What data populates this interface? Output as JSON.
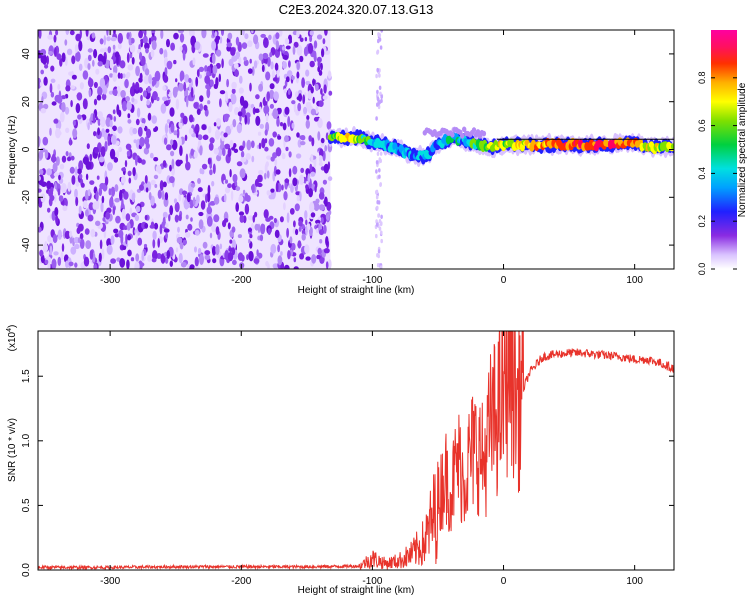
{
  "title": "C2E3.2024.320.07.13.G13",
  "chart_data": [
    {
      "type": "heatmap",
      "xlabel": "Height of straight line (km)",
      "ylabel": "Frequency (Hz)",
      "xlim": [
        -355,
        130
      ],
      "ylim": [
        -50,
        50
      ],
      "xticks": [
        -300,
        -200,
        -100,
        0,
        100
      ],
      "xtick_labels": [
        "-300",
        "-200",
        "-100",
        "0",
        "100"
      ],
      "yticks": [
        -40,
        -20,
        0,
        20,
        40
      ],
      "ytick_labels": [
        "-40",
        "-20",
        "0",
        "20",
        "40"
      ],
      "grid": false,
      "noise_region_x": [
        -355,
        -132
      ],
      "signal_start_x": -132,
      "ridge": {
        "x": [
          -132,
          -120,
          -110,
          -100,
          -90,
          -80,
          -70,
          -60,
          -50,
          -40,
          -30,
          -20,
          -10,
          0,
          20,
          40,
          60,
          80,
          100,
          110,
          130
        ],
        "freq": [
          5,
          5,
          5,
          3,
          2,
          0,
          -2,
          -3,
          2,
          5,
          4,
          2,
          1,
          2,
          2,
          2,
          2,
          2,
          3,
          1,
          1
        ],
        "amplitude": [
          0.45,
          0.7,
          0.5,
          0.4,
          0.3,
          0.3,
          0.25,
          0.3,
          0.25,
          0.35,
          0.3,
          0.45,
          0.55,
          0.6,
          0.7,
          0.8,
          0.85,
          0.9,
          0.8,
          0.6,
          0.6
        ]
      },
      "colorbar": {
        "label": "Normalized spectral amplitude",
        "range": [
          0,
          1
        ],
        "ticks": [
          0.0,
          0.2,
          0.4,
          0.6,
          0.8
        ],
        "tick_labels": [
          "0.0",
          "0.2",
          "0.4",
          "0.6",
          "0.8"
        ],
        "colormap": "rainbow (white-violet-blue-cyan-green-yellow-orange-red-magenta)"
      }
    },
    {
      "type": "line",
      "xlabel": "Height of straight line (km)",
      "ylabel": "SNR (10 * v/v)",
      "yscale_label": "(x10",
      "yscale_exponent": "4",
      "xlim": [
        -355,
        130
      ],
      "ylim": [
        0,
        18500
      ],
      "xticks": [
        -300,
        -200,
        -100,
        0,
        100
      ],
      "xtick_labels": [
        "-300",
        "-200",
        "-100",
        "0",
        "100"
      ],
      "yticks": [
        0,
        5000,
        10000,
        15000
      ],
      "ytick_labels": [
        "0.0",
        "0.5",
        "1.0",
        "1.5"
      ],
      "grid": false,
      "color": "#e8332b",
      "series": [
        {
          "x": [
            -355,
            -300,
            -250,
            -200,
            -150,
            -110,
            -100,
            -90,
            -80,
            -70,
            -60,
            -50,
            -45,
            -40,
            -35,
            -30,
            -25,
            -20,
            -15,
            -10,
            -5,
            0,
            5,
            10,
            15,
            20,
            30,
            40,
            50,
            60,
            70,
            80,
            90,
            100,
            110,
            120,
            130
          ],
          "values": [
            200,
            200,
            250,
            250,
            250,
            300,
            900,
            500,
            700,
            1200,
            2200,
            5000,
            7500,
            6000,
            8500,
            7000,
            9000,
            9500,
            8200,
            11000,
            12000,
            13500,
            17500,
            13000,
            14000,
            15300,
            16500,
            16700,
            16800,
            16800,
            16700,
            16600,
            16500,
            16300,
            16300,
            16000,
            15600
          ]
        }
      ]
    }
  ]
}
